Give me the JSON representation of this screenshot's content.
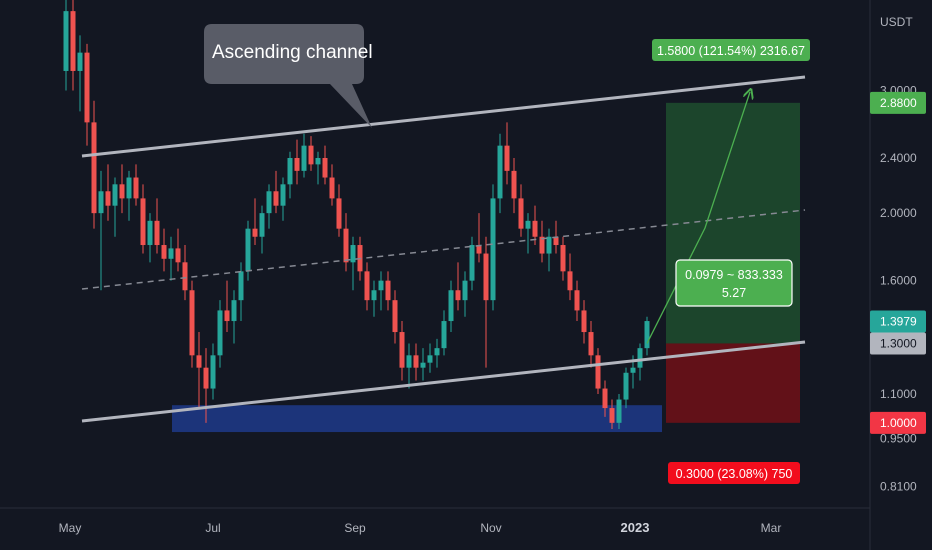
{
  "chart_data": {
    "type": "candlestick",
    "currency_label": "USDT",
    "y_axis": {
      "scale": "log",
      "ticks": [
        "3.0000",
        "2.4000",
        "2.0000",
        "1.6000",
        "1.1000",
        "0.9500",
        "0.8100"
      ]
    },
    "x_axis": {
      "ticks": [
        {
          "label": "May",
          "bold": false
        },
        {
          "label": "Jul",
          "bold": false
        },
        {
          "label": "Sep",
          "bold": false
        },
        {
          "label": "Nov",
          "bold": false
        },
        {
          "label": "2023",
          "bold": true
        },
        {
          "label": "Mar",
          "bold": false
        }
      ]
    },
    "price_tags": [
      {
        "label": "2.8800",
        "bg": "#4caf50",
        "fg": "#ffffff"
      },
      {
        "label": "1.3979",
        "bg": "#26a69a",
        "fg": "#ffffff"
      },
      {
        "label": "1.3000",
        "bg": "#b2b5be",
        "fg": "#131722"
      },
      {
        "label": "1.0000",
        "bg": "#f23645",
        "fg": "#ffffff"
      }
    ],
    "annotations": {
      "callout": "Ascending channel",
      "target_label": "1.5800 (121.54%) 2316.67",
      "stop_label": "0.3000 (23.08%) 750",
      "position_info": [
        "0.0979 ~ 833.333",
        "5.27"
      ]
    },
    "position": {
      "entry": 1.3,
      "take_profit": 2.88,
      "stop_loss": 1.0
    },
    "demand_zone": {
      "low": 0.97,
      "high": 1.06
    },
    "ohlc": [
      [
        3.2,
        4.4,
        3.0,
        3.9
      ],
      [
        3.9,
        4.2,
        3.0,
        3.2
      ],
      [
        3.2,
        3.6,
        2.8,
        3.4
      ],
      [
        3.4,
        3.5,
        2.5,
        2.7
      ],
      [
        2.7,
        2.9,
        1.9,
        2.0
      ],
      [
        2.0,
        2.3,
        1.55,
        2.15
      ],
      [
        2.15,
        2.35,
        1.95,
        2.05
      ],
      [
        2.05,
        2.25,
        1.85,
        2.2
      ],
      [
        2.2,
        2.35,
        2.0,
        2.1
      ],
      [
        2.1,
        2.3,
        1.95,
        2.25
      ],
      [
        2.25,
        2.35,
        2.05,
        2.1
      ],
      [
        2.1,
        2.2,
        1.75,
        1.8
      ],
      [
        1.8,
        2.0,
        1.7,
        1.95
      ],
      [
        1.95,
        2.1,
        1.75,
        1.8
      ],
      [
        1.8,
        1.9,
        1.65,
        1.72
      ],
      [
        1.72,
        1.85,
        1.6,
        1.78
      ],
      [
        1.78,
        1.9,
        1.65,
        1.7
      ],
      [
        1.7,
        1.8,
        1.5,
        1.55
      ],
      [
        1.55,
        1.6,
        1.2,
        1.25
      ],
      [
        1.25,
        1.35,
        1.05,
        1.2
      ],
      [
        1.2,
        1.28,
        1.0,
        1.12
      ],
      [
        1.12,
        1.3,
        1.08,
        1.25
      ],
      [
        1.25,
        1.5,
        1.2,
        1.45
      ],
      [
        1.45,
        1.6,
        1.35,
        1.4
      ],
      [
        1.4,
        1.55,
        1.3,
        1.5
      ],
      [
        1.5,
        1.7,
        1.4,
        1.65
      ],
      [
        1.65,
        1.95,
        1.6,
        1.9
      ],
      [
        1.9,
        2.1,
        1.8,
        1.85
      ],
      [
        1.85,
        2.05,
        1.75,
        2.0
      ],
      [
        2.0,
        2.2,
        1.9,
        2.15
      ],
      [
        2.15,
        2.3,
        2.0,
        2.05
      ],
      [
        2.05,
        2.25,
        1.95,
        2.2
      ],
      [
        2.2,
        2.45,
        2.1,
        2.4
      ],
      [
        2.4,
        2.55,
        2.2,
        2.3
      ],
      [
        2.3,
        2.6,
        2.25,
        2.5
      ],
      [
        2.5,
        2.58,
        2.3,
        2.35
      ],
      [
        2.35,
        2.45,
        2.2,
        2.4
      ],
      [
        2.4,
        2.5,
        2.2,
        2.25
      ],
      [
        2.25,
        2.35,
        2.05,
        2.1
      ],
      [
        2.1,
        2.2,
        1.85,
        1.9
      ],
      [
        1.9,
        2.0,
        1.65,
        1.7
      ],
      [
        1.7,
        1.85,
        1.55,
        1.8
      ],
      [
        1.8,
        1.85,
        1.6,
        1.65
      ],
      [
        1.65,
        1.7,
        1.45,
        1.5
      ],
      [
        1.5,
        1.6,
        1.42,
        1.55
      ],
      [
        1.55,
        1.65,
        1.45,
        1.6
      ],
      [
        1.6,
        1.65,
        1.45,
        1.5
      ],
      [
        1.5,
        1.55,
        1.3,
        1.35
      ],
      [
        1.35,
        1.4,
        1.15,
        1.2
      ],
      [
        1.2,
        1.3,
        1.12,
        1.25
      ],
      [
        1.25,
        1.3,
        1.15,
        1.2
      ],
      [
        1.2,
        1.28,
        1.15,
        1.22
      ],
      [
        1.22,
        1.3,
        1.18,
        1.25
      ],
      [
        1.25,
        1.32,
        1.2,
        1.28
      ],
      [
        1.28,
        1.45,
        1.25,
        1.4
      ],
      [
        1.4,
        1.6,
        1.35,
        1.55
      ],
      [
        1.55,
        1.7,
        1.45,
        1.5
      ],
      [
        1.5,
        1.65,
        1.42,
        1.6
      ],
      [
        1.6,
        1.85,
        1.55,
        1.8
      ],
      [
        1.8,
        2.0,
        1.7,
        1.75
      ],
      [
        1.75,
        1.85,
        1.2,
        1.5
      ],
      [
        1.5,
        2.2,
        1.45,
        2.1
      ],
      [
        2.1,
        2.6,
        2.0,
        2.5
      ],
      [
        2.5,
        2.7,
        2.2,
        2.3
      ],
      [
        2.3,
        2.4,
        2.0,
        2.1
      ],
      [
        2.1,
        2.2,
        1.85,
        1.9
      ],
      [
        1.9,
        2.0,
        1.75,
        1.95
      ],
      [
        1.95,
        2.05,
        1.8,
        1.85
      ],
      [
        1.85,
        1.95,
        1.7,
        1.75
      ],
      [
        1.75,
        1.9,
        1.65,
        1.85
      ],
      [
        1.85,
        1.95,
        1.75,
        1.8
      ],
      [
        1.8,
        1.85,
        1.6,
        1.65
      ],
      [
        1.65,
        1.75,
        1.5,
        1.55
      ],
      [
        1.55,
        1.6,
        1.4,
        1.45
      ],
      [
        1.45,
        1.5,
        1.3,
        1.35
      ],
      [
        1.35,
        1.4,
        1.2,
        1.25
      ],
      [
        1.25,
        1.28,
        1.1,
        1.12
      ],
      [
        1.12,
        1.15,
        1.02,
        1.05
      ],
      [
        1.05,
        1.08,
        0.98,
        1.0
      ],
      [
        1.0,
        1.1,
        0.98,
        1.08
      ],
      [
        1.08,
        1.2,
        1.05,
        1.18
      ],
      [
        1.18,
        1.25,
        1.12,
        1.2
      ],
      [
        1.2,
        1.3,
        1.15,
        1.28
      ],
      [
        1.28,
        1.42,
        1.25,
        1.4
      ]
    ]
  }
}
